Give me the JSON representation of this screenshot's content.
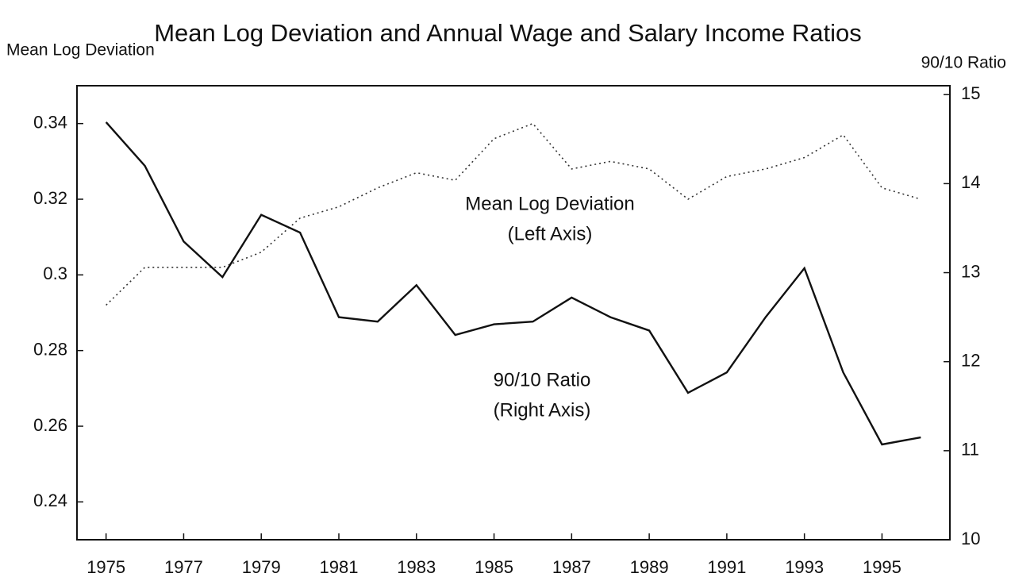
{
  "chart_data": {
    "type": "line",
    "title": "Mean Log Deviation and Annual Wage and Salary Income Ratios",
    "y_axis_label": "Mean Log Deviation",
    "y2_axis_label": "90/10 Ratio",
    "annotations": [
      [
        "Mean Log Deviation",
        "(Left Axis)"
      ],
      [
        "90/10 Ratio",
        "(Right Axis)"
      ]
    ],
    "x": [
      1975,
      1976,
      1977,
      1978,
      1979,
      1980,
      1981,
      1982,
      1983,
      1984,
      1985,
      1986,
      1987,
      1988,
      1989,
      1990,
      1991,
      1992,
      1993,
      1994,
      1995,
      1996
    ],
    "series": [
      {
        "name": "Mean Log Deviation",
        "color": "#333333",
        "dash": "2,4",
        "values": [
          0.292,
          0.302,
          0.302,
          0.302,
          0.306,
          0.315,
          0.318,
          0.323,
          0.327,
          0.325,
          0.336,
          0.34,
          0.328,
          0.33,
          0.328,
          0.32,
          0.326,
          0.328,
          0.331,
          0.337,
          0.323,
          0.32
        ]
      },
      {
        "name": "90/10 Ratio",
        "color": "#111111",
        "axis": "y2",
        "values": [
          14.69,
          14.2,
          13.35,
          12.95,
          13.65,
          13.45,
          12.5,
          12.45,
          12.86,
          12.3,
          12.42,
          12.45,
          12.72,
          12.5,
          12.35,
          11.65,
          11.88,
          12.5,
          13.05,
          11.88,
          11.07,
          11.15
        ]
      }
    ],
    "xlim": [
      1974.25,
      1996.75
    ],
    "xticks": [
      1975,
      1977,
      1979,
      1981,
      1983,
      1985,
      1987,
      1989,
      1991,
      1993,
      1995
    ],
    "ylim": [
      0.23,
      0.35
    ],
    "yticks": [
      0.24,
      0.26,
      0.28,
      {
        "value": 0.3,
        "label": "0.3"
      },
      0.32,
      0.34
    ],
    "y2lim": [
      10,
      15.1
    ],
    "y2ticks": [
      10,
      11,
      12,
      13,
      14,
      15
    ]
  }
}
